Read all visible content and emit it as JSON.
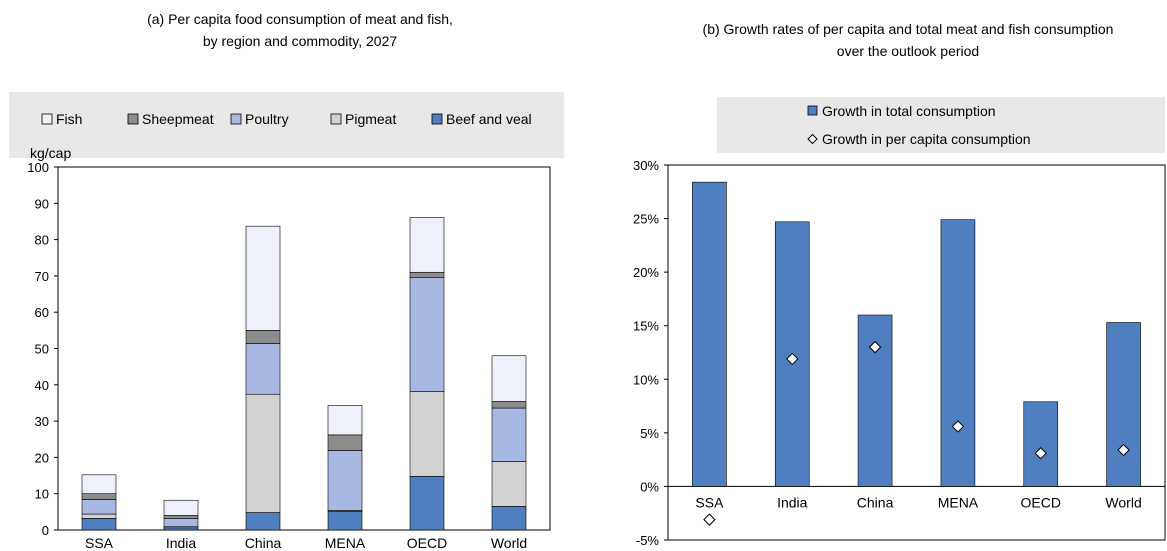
{
  "colors": {
    "fish": "#eef1f9",
    "sheepmeat": "#8c8c8c",
    "poultry": "#a9b7e3",
    "pigmeat": "#d2d2d2",
    "beef": "#4f7fc0",
    "bar_outline": "#000000",
    "legend_bg": "#e8e8e8",
    "growth_bar": "#4f7fc0"
  },
  "chart_data": [
    {
      "type": "bar",
      "stacked": true,
      "title_line1": "(a) Per capita food consumption of meat and fish,",
      "title_line2": "by region and commodity, 2027",
      "ylabel": "kg/cap",
      "ylim": [
        0,
        100
      ],
      "yticks": [
        "0",
        "10",
        "20",
        "30",
        "40",
        "50",
        "60",
        "70",
        "80",
        "90",
        "100"
      ],
      "grid": false,
      "legend_position": "top",
      "categories": [
        "SSA",
        "India",
        "China",
        "MENA",
        "OECD",
        "World"
      ],
      "series": [
        {
          "name": "Beef and veal",
          "values": [
            3.2,
            0.6,
            4.8,
            5.1,
            14.8,
            6.5
          ]
        },
        {
          "name": "Pigmeat",
          "values": [
            1.2,
            0.3,
            32.6,
            0.3,
            23.4,
            12.4
          ]
        },
        {
          "name": "Poultry",
          "values": [
            4.0,
            2.3,
            14.0,
            16.5,
            31.3,
            14.7
          ]
        },
        {
          "name": "Sheepmeat",
          "values": [
            1.6,
            0.8,
            3.6,
            4.3,
            1.5,
            1.8
          ]
        },
        {
          "name": "Fish",
          "values": [
            5.2,
            4.2,
            28.7,
            8.1,
            15.1,
            12.6
          ]
        }
      ],
      "legend_order": [
        "Fish",
        "Sheepmeat",
        "Poultry",
        "Pigmeat",
        "Beef and veal"
      ]
    },
    {
      "type": "bar",
      "title_line1": "(b) Growth rates of per capita and total meat and fish consumption",
      "title_line2": "over the outlook period",
      "ylim": [
        -0.05,
        0.3
      ],
      "yticks": [
        "-5%",
        "0%",
        "5%",
        "10%",
        "15%",
        "20%",
        "25%",
        "30%"
      ],
      "grid": false,
      "legend_position": "top",
      "categories": [
        "SSA",
        "India",
        "China",
        "MENA",
        "OECD",
        "World"
      ],
      "series": [
        {
          "name": "Growth in total consumption",
          "kind": "bar",
          "values": [
            0.284,
            0.247,
            0.16,
            0.249,
            0.079,
            0.153
          ]
        },
        {
          "name": "Growth in per capita consumption",
          "kind": "marker",
          "values": [
            -0.031,
            0.119,
            0.13,
            0.056,
            0.031,
            0.034
          ]
        }
      ]
    }
  ]
}
